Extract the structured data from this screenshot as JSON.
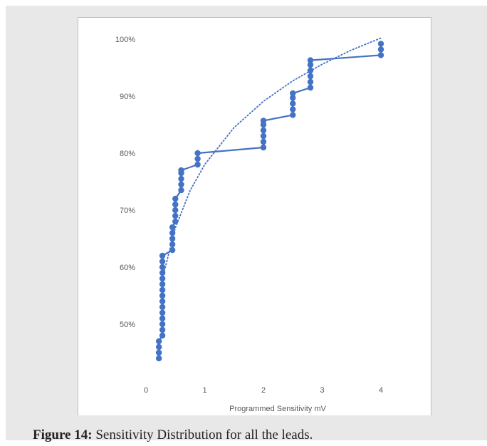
{
  "caption": {
    "label": "Figure 14:",
    "text": " Sensitivity Distribution for all the leads."
  },
  "colors": {
    "series": "#4472c4",
    "text": "#595959",
    "panel": "#e8e8e8"
  },
  "chart_data": {
    "type": "scatter",
    "title": "",
    "xlabel": "Programmed Sensitivity mV",
    "ylabel": "",
    "xlim": [
      0,
      4
    ],
    "ylim": [
      40,
      100
    ],
    "x_ticks": [
      0,
      1,
      2,
      3,
      4
    ],
    "y_ticks": [
      50,
      60,
      70,
      80,
      90,
      100
    ],
    "y_tick_labels": [
      "50%",
      "60%",
      "70%",
      "80%",
      "90%",
      "100%"
    ],
    "grid": false,
    "series": [
      {
        "type": "line-with-markers",
        "points": [
          {
            "x": 0.22,
            "y": 44
          },
          {
            "x": 0.22,
            "y": 45
          },
          {
            "x": 0.22,
            "y": 46
          },
          {
            "x": 0.22,
            "y": 47
          },
          {
            "x": 0.28,
            "y": 48
          },
          {
            "x": 0.28,
            "y": 49
          },
          {
            "x": 0.28,
            "y": 50
          },
          {
            "x": 0.28,
            "y": 51
          },
          {
            "x": 0.28,
            "y": 52
          },
          {
            "x": 0.28,
            "y": 53
          },
          {
            "x": 0.28,
            "y": 54
          },
          {
            "x": 0.28,
            "y": 55
          },
          {
            "x": 0.28,
            "y": 56
          },
          {
            "x": 0.28,
            "y": 57
          },
          {
            "x": 0.28,
            "y": 58
          },
          {
            "x": 0.28,
            "y": 59
          },
          {
            "x": 0.28,
            "y": 60
          },
          {
            "x": 0.28,
            "y": 61
          },
          {
            "x": 0.28,
            "y": 62
          },
          {
            "x": 0.45,
            "y": 63
          },
          {
            "x": 0.45,
            "y": 64
          },
          {
            "x": 0.45,
            "y": 65
          },
          {
            "x": 0.45,
            "y": 66
          },
          {
            "x": 0.45,
            "y": 67
          },
          {
            "x": 0.5,
            "y": 68
          },
          {
            "x": 0.5,
            "y": 69
          },
          {
            "x": 0.5,
            "y": 70
          },
          {
            "x": 0.5,
            "y": 71
          },
          {
            "x": 0.5,
            "y": 72
          },
          {
            "x": 0.6,
            "y": 73.5
          },
          {
            "x": 0.6,
            "y": 74.5
          },
          {
            "x": 0.6,
            "y": 75.5
          },
          {
            "x": 0.6,
            "y": 76.5
          },
          {
            "x": 0.6,
            "y": 77
          },
          {
            "x": 0.88,
            "y": 78
          },
          {
            "x": 0.88,
            "y": 79
          },
          {
            "x": 0.88,
            "y": 80
          },
          {
            "x": 2.0,
            "y": 81
          },
          {
            "x": 2.0,
            "y": 82
          },
          {
            "x": 2.0,
            "y": 83
          },
          {
            "x": 2.0,
            "y": 84
          },
          {
            "x": 2.0,
            "y": 85
          },
          {
            "x": 2.0,
            "y": 85.7
          },
          {
            "x": 2.5,
            "y": 86.7
          },
          {
            "x": 2.5,
            "y": 87.7
          },
          {
            "x": 2.5,
            "y": 88.7
          },
          {
            "x": 2.5,
            "y": 89.7
          },
          {
            "x": 2.5,
            "y": 90.5
          },
          {
            "x": 2.8,
            "y": 91.5
          },
          {
            "x": 2.8,
            "y": 92.5
          },
          {
            "x": 2.8,
            "y": 93.5
          },
          {
            "x": 2.8,
            "y": 94.5
          },
          {
            "x": 2.8,
            "y": 95.5
          },
          {
            "x": 2.8,
            "y": 96.3
          },
          {
            "x": 4.0,
            "y": 97.2
          },
          {
            "x": 4.0,
            "y": 98.2
          },
          {
            "x": 4.0,
            "y": 99.2
          }
        ]
      },
      {
        "type": "trendline",
        "style": "dotted",
        "kind": "logarithmic",
        "points": [
          {
            "x": 0.3,
            "y": 58.8
          },
          {
            "x": 0.5,
            "y": 66.9
          },
          {
            "x": 0.75,
            "y": 73.4
          },
          {
            "x": 1.0,
            "y": 78.0
          },
          {
            "x": 1.5,
            "y": 84.5
          },
          {
            "x": 2.0,
            "y": 89.1
          },
          {
            "x": 2.5,
            "y": 92.7
          },
          {
            "x": 3.0,
            "y": 95.6
          },
          {
            "x": 3.5,
            "y": 98.1
          },
          {
            "x": 4.0,
            "y": 100.2
          }
        ]
      }
    ]
  }
}
